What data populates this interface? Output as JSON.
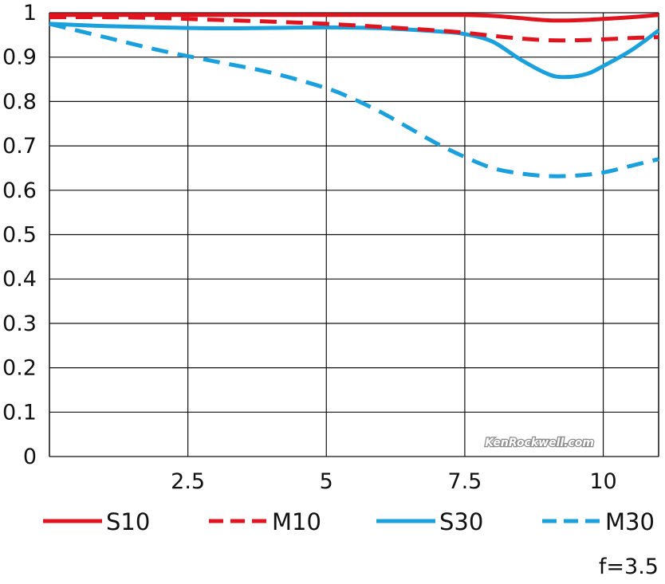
{
  "chart_data": {
    "type": "line",
    "title": "",
    "xlabel": "",
    "ylabel": "",
    "xlim": [
      0,
      11
    ],
    "ylim": [
      0,
      1
    ],
    "grid": true,
    "legend_position": "bottom",
    "x_ticks": [
      {
        "value": 2.5,
        "label": "2.5"
      },
      {
        "value": 5,
        "label": "5"
      },
      {
        "value": 7.5,
        "label": "7.5"
      },
      {
        "value": 10,
        "label": "10"
      }
    ],
    "y_ticks": [
      {
        "value": 0,
        "label": "0"
      },
      {
        "value": 0.1,
        "label": "0.1"
      },
      {
        "value": 0.2,
        "label": "0.2"
      },
      {
        "value": 0.3,
        "label": "0.3"
      },
      {
        "value": 0.4,
        "label": "0.4"
      },
      {
        "value": 0.5,
        "label": "0.5"
      },
      {
        "value": 0.6,
        "label": "0.6"
      },
      {
        "value": 0.7,
        "label": "0.7"
      },
      {
        "value": 0.8,
        "label": "0.8"
      },
      {
        "value": 0.9,
        "label": "0.9"
      },
      {
        "value": 1,
        "label": "1"
      }
    ],
    "series": [
      {
        "name": "S10",
        "color": "#e0141e",
        "dashed": false,
        "x": [
          0,
          1,
          2,
          3,
          4,
          5,
          6,
          7,
          7.5,
          8,
          8.5,
          9,
          9.5,
          10,
          10.5,
          11
        ],
        "y": [
          0.995,
          0.995,
          0.995,
          0.995,
          0.995,
          0.995,
          0.995,
          0.995,
          0.995,
          0.993,
          0.988,
          0.983,
          0.983,
          0.986,
          0.99,
          0.995
        ]
      },
      {
        "name": "M10",
        "color": "#e0141e",
        "dashed": true,
        "x": [
          0,
          1,
          2,
          3,
          4,
          5,
          6,
          7,
          7.5,
          8,
          8.5,
          9,
          9.5,
          10,
          10.5,
          11
        ],
        "y": [
          0.99,
          0.99,
          0.988,
          0.984,
          0.98,
          0.975,
          0.968,
          0.96,
          0.955,
          0.948,
          0.942,
          0.938,
          0.938,
          0.94,
          0.943,
          0.945
        ]
      },
      {
        "name": "S30",
        "color": "#1aa0dc",
        "dashed": false,
        "x": [
          0,
          1,
          2,
          3,
          4,
          5,
          6,
          7,
          7.5,
          8,
          8.5,
          9,
          9.3,
          9.7,
          10,
          10.5,
          11
        ],
        "y": [
          0.975,
          0.97,
          0.967,
          0.965,
          0.966,
          0.967,
          0.965,
          0.958,
          0.952,
          0.935,
          0.895,
          0.862,
          0.855,
          0.862,
          0.88,
          0.915,
          0.96
        ]
      },
      {
        "name": "M30",
        "color": "#1aa0dc",
        "dashed": true,
        "x": [
          0,
          1,
          2,
          3,
          4,
          5,
          5.5,
          6,
          6.5,
          7,
          7.5,
          8,
          8.5,
          9,
          9.5,
          10,
          10.5,
          11
        ],
        "y": [
          0.975,
          0.945,
          0.915,
          0.89,
          0.865,
          0.83,
          0.805,
          0.775,
          0.74,
          0.705,
          0.675,
          0.65,
          0.638,
          0.632,
          0.633,
          0.64,
          0.655,
          0.67
        ]
      }
    ],
    "annotations": [
      {
        "text": "KenRockwell.com"
      },
      {
        "text": "f=3.5"
      }
    ]
  }
}
